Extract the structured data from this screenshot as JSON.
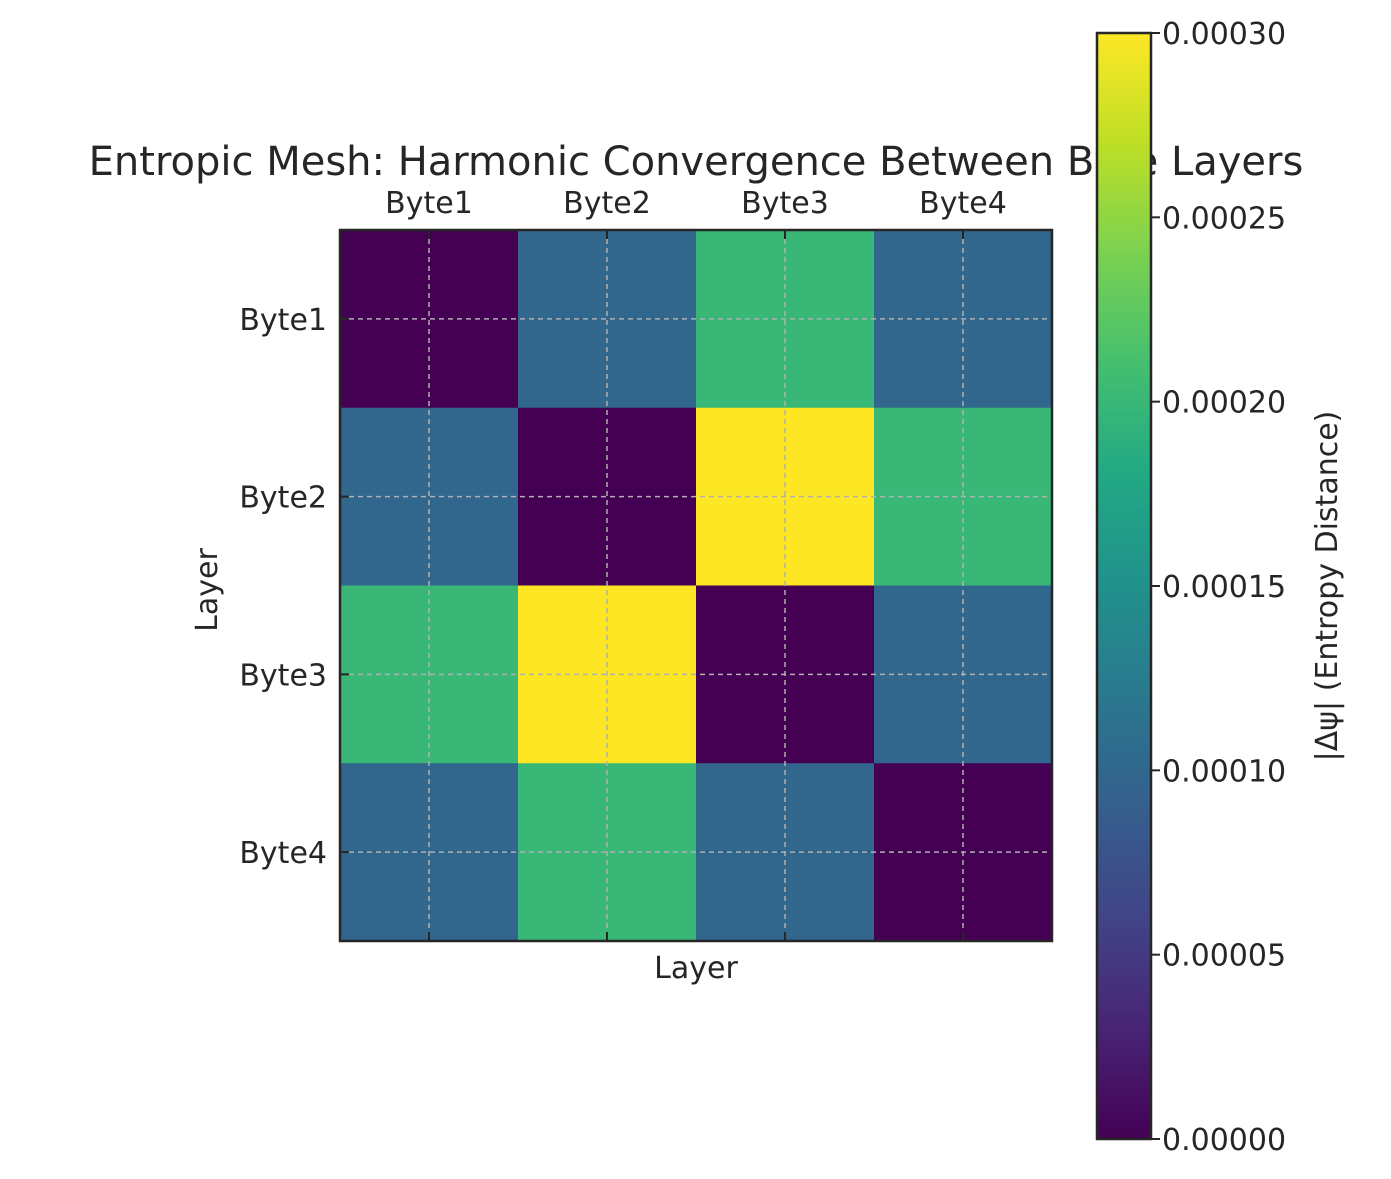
{
  "chart_data": {
    "type": "heatmap",
    "title": "Entropic Mesh: Harmonic Convergence Between Byte Layers",
    "xlabel": "Layer",
    "ylabel": "Layer",
    "x_categories": [
      "Byte1",
      "Byte2",
      "Byte3",
      "Byte4"
    ],
    "y_categories": [
      "Byte1",
      "Byte2",
      "Byte3",
      "Byte4"
    ],
    "x_tick_position": "top",
    "values": [
      [
        0.0,
        0.0001,
        0.0002,
        0.0001
      ],
      [
        0.0001,
        0.0,
        0.0003,
        0.0002
      ],
      [
        0.0002,
        0.0003,
        0.0,
        0.0001
      ],
      [
        0.0001,
        0.0002,
        0.0001,
        0.0
      ]
    ],
    "colormap": "viridis",
    "grid": true,
    "colorbar": {
      "label": "|Δψ| (Entropy Distance)",
      "range": [
        0.0,
        0.0003
      ],
      "ticks": [
        "0.00000",
        "0.00005",
        "0.00010",
        "0.00015",
        "0.00020",
        "0.00025",
        "0.00030"
      ]
    }
  }
}
